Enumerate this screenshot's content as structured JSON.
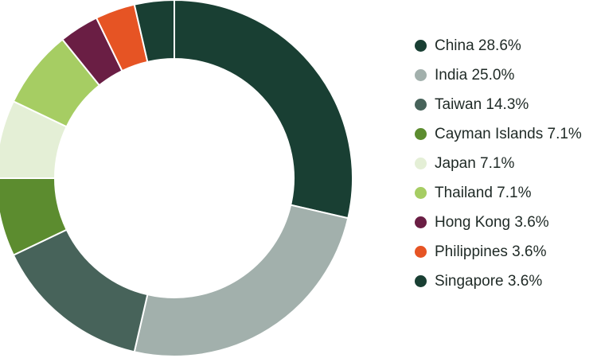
{
  "chart_data": {
    "type": "pie",
    "variant": "donut",
    "slices": [
      {
        "label": "China 28.6%",
        "value": 28.6,
        "color": "#193f33"
      },
      {
        "label": "India 25.0%",
        "value": 25.0,
        "color": "#a2b0ac"
      },
      {
        "label": "Taiwan 14.3%",
        "value": 14.3,
        "color": "#47635a"
      },
      {
        "label": "Cayman Islands 7.1%",
        "value": 7.1,
        "color": "#5c8c2f"
      },
      {
        "label": "Japan 7.1%",
        "value": 7.1,
        "color": "#e4efd6"
      },
      {
        "label": "Thailand 7.1%",
        "value": 7.1,
        "color": "#a6cd63"
      },
      {
        "label": "Hong Kong 3.6%",
        "value": 3.6,
        "color": "#6a1e44"
      },
      {
        "label": "Philippines 3.6%",
        "value": 3.6,
        "color": "#e65424"
      },
      {
        "label": "Singapore 3.6%",
        "value": 3.6,
        "color": "#193f33"
      }
    ],
    "start_angle_deg": 0,
    "direction": "clockwise",
    "legend_position": "right"
  }
}
